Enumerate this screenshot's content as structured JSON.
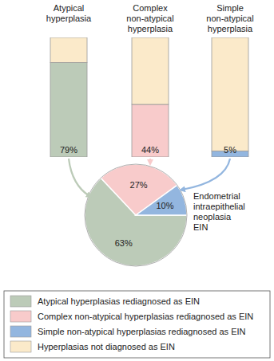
{
  "chart_data": [
    {
      "type": "bar",
      "stacked": true,
      "tick_labels": false,
      "ylim": [
        0,
        100
      ],
      "categories": [
        "Atypical hyperplasia",
        "Complex non-atypical hyperplasia",
        "Simple non-atypical hyperplasia"
      ],
      "series": [
        {
          "colors": [
            "#bccbb8",
            "#f8cbcb",
            "#93b6df"
          ],
          "values": [
            79,
            44,
            5
          ],
          "value_labels": [
            "79%",
            "44%",
            "5%"
          ],
          "data_labels": true
        },
        {
          "name": "Hyperplasias not diagnosed as EIN",
          "color": "#fbeaca",
          "values": [
            21,
            56,
            95
          ]
        }
      ]
    },
    {
      "type": "pie",
      "legend": "bottom",
      "data_labels": true,
      "annotation": "Endometrial intraepithelial neoplasia EIN",
      "categories": [
        "Atypical hyperplasias rediagnosed as EIN",
        "Complex non-atypical hyperplasias rediagnosed as EIN",
        "Simple non-atypical hyperplasias rediagnosed as EIN"
      ],
      "values": [
        63,
        27,
        10
      ],
      "value_labels": [
        "63%",
        "27%",
        "10%"
      ],
      "colors": [
        "#bccbb8",
        "#f8cbcb",
        "#93b6df"
      ]
    }
  ]
}
